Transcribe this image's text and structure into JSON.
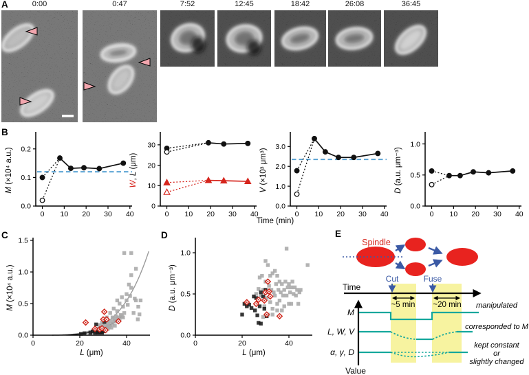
{
  "colors": {
    "red": "#d6251d",
    "ellipse_red": "#e8231f",
    "light_blue": "#5aa2d4",
    "teal": "#14a79c",
    "yellow": "#f7f3a0",
    "blue": "#3b5aa5",
    "gray": "#a8a8a8",
    "black": "#111111",
    "pink": "#f2a6ae"
  },
  "panelA": {
    "label": "A",
    "timestamps": [
      "0:00",
      "0:47",
      "7:52",
      "12:45",
      "18:42",
      "26:08",
      "36:45"
    ]
  },
  "panelB": {
    "label": "B",
    "xlabel": "Time (min)"
  },
  "panelC": {
    "label": "C"
  },
  "panelD": {
    "label": "D"
  },
  "panelE": {
    "label": "E",
    "spindle_label": "Spindle",
    "time_label": "Time",
    "cut_label": "Cut",
    "fuse_label": "Fuse",
    "interval_short": "~5 min",
    "interval_long": "~20 min",
    "value_label": "Value",
    "rows": [
      {
        "label": "M",
        "annotation": [
          "manipulated"
        ]
      },
      {
        "label": "L, W, V",
        "annotation": [
          "corresponded to M"
        ]
      },
      {
        "label": "α, γ, D",
        "annotation": [
          "kept constant",
          "or",
          "slightly changed"
        ]
      }
    ]
  },
  "chart_data": [
    {
      "id": "B1",
      "type": "line",
      "ylabel_parts": [
        {
          "t": "M",
          "i": true
        },
        {
          "t": " (×10⁴ a.u.)"
        }
      ],
      "xlim": [
        -3,
        41
      ],
      "xticks": [
        0,
        10,
        20,
        30,
        40
      ],
      "ylim": [
        0,
        0.25
      ],
      "yticks": [
        0,
        0.1,
        0.2
      ],
      "ytick_labels": [
        "0.0",
        "0.1",
        "0.2"
      ],
      "hline": 0.12,
      "series": [
        {
          "marker": "circle",
          "color": "#111111",
          "open_start": [
            0,
            0.02
          ],
          "points": [
            [
              0,
              0.1
            ],
            [
              8,
              0.168
            ],
            [
              13,
              0.132
            ],
            [
              19,
              0.134
            ],
            [
              26,
              0.131
            ],
            [
              37,
              0.15
            ]
          ]
        }
      ]
    },
    {
      "id": "B2",
      "type": "line",
      "ylabel_parts": [
        {
          "t": "W",
          "i": true,
          "c": "#d6251d"
        },
        {
          "t": ", "
        },
        {
          "t": "L",
          "i": true
        },
        {
          "t": " (μm)"
        }
      ],
      "xlim": [
        -3,
        41
      ],
      "xticks": [
        0,
        10,
        20,
        30,
        40
      ],
      "ylim": [
        0,
        35
      ],
      "yticks": [
        0,
        10,
        20,
        30
      ],
      "ytick_labels": [
        "0",
        "10",
        "20",
        "30"
      ],
      "series": [
        {
          "marker": "circle",
          "color": "#111111",
          "open_start": [
            0,
            26.5
          ],
          "points": [
            [
              0,
              28.3
            ],
            [
              19,
              31.0
            ],
            [
              26,
              30.4
            ],
            [
              37,
              30.7
            ]
          ]
        },
        {
          "marker": "triangle",
          "color": "#d6251d",
          "open_start": [
            0,
            6.8
          ],
          "points": [
            [
              0,
              11.5
            ],
            [
              19,
              12.6
            ],
            [
              26,
              12.4
            ],
            [
              37,
              12.1
            ]
          ]
        }
      ]
    },
    {
      "id": "B3",
      "type": "line",
      "ylabel_parts": [
        {
          "t": "V",
          "i": true
        },
        {
          "t": " (×10³ μm³)"
        }
      ],
      "xlim": [
        -3,
        41
      ],
      "xticks": [
        0,
        10,
        20,
        30,
        40
      ],
      "ylim": [
        0,
        3.6
      ],
      "yticks": [
        0,
        1,
        2,
        3
      ],
      "ytick_labels": [
        "0.0",
        "1.0",
        "2.0",
        "3.0"
      ],
      "hline": 2.35,
      "series": [
        {
          "marker": "circle",
          "color": "#111111",
          "open_start": [
            0,
            0.6
          ],
          "points": [
            [
              0,
              1.78
            ],
            [
              8,
              3.4
            ],
            [
              13,
              2.73
            ],
            [
              19,
              2.45
            ],
            [
              26,
              2.45
            ],
            [
              37,
              2.65
            ]
          ]
        }
      ]
    },
    {
      "id": "B4",
      "type": "line",
      "ylabel_parts": [
        {
          "t": "D",
          "i": true
        },
        {
          "t": " (a.u. μm⁻³)"
        }
      ],
      "xlim": [
        -3,
        41
      ],
      "xticks": [
        0,
        10,
        20,
        30,
        40
      ],
      "ylim": [
        0,
        1.15
      ],
      "yticks": [
        0,
        0.5,
        1
      ],
      "ytick_labels": [
        "0.0",
        "0.5",
        "1.0"
      ],
      "series": [
        {
          "marker": "circle",
          "color": "#111111",
          "open_start": [
            0,
            0.345
          ],
          "points": [
            [
              0,
              0.565
            ],
            [
              8,
              0.49
            ],
            [
              13,
              0.49
            ],
            [
              19,
              0.55
            ],
            [
              26,
              0.535
            ],
            [
              37,
              0.565
            ]
          ]
        }
      ]
    },
    {
      "id": "C",
      "type": "scatter",
      "xlabel_parts": [
        {
          "t": "L",
          "i": true
        },
        {
          "t": " (μm)"
        }
      ],
      "ylabel_parts": [
        {
          "t": "M",
          "i": true
        },
        {
          "t": " (×10⁴ a.u.)"
        }
      ],
      "xlim": [
        0,
        50
      ],
      "xticks": [
        0,
        20,
        40
      ],
      "ylim": [
        0,
        1.5
      ],
      "yticks": [
        0,
        0.5,
        1,
        1.5
      ],
      "ytick_labels": [
        "0.0",
        "0.5",
        "1.0",
        "1.5"
      ],
      "curves": [
        {
          "color": "#9b9b9b",
          "coef": 1.14e-07,
          "exp": 4.17,
          "range": [
            8,
            49.5
          ]
        },
        {
          "color": "#111111",
          "coef": 5.2e-08,
          "exp": 4.28,
          "range": [
            8,
            38
          ]
        }
      ],
      "series": [
        {
          "marker": "square",
          "color": "#a8a8a8",
          "points": [
            [
              25,
              0.05
            ],
            [
              26,
              0.07
            ],
            [
              26.5,
              0.04
            ],
            [
              27,
              0.06
            ],
            [
              27.5,
              0.1
            ],
            [
              28,
              0.08
            ],
            [
              28.5,
              0.05
            ],
            [
              28.5,
              0.16
            ],
            [
              29,
              0.09
            ],
            [
              29.5,
              0.12
            ],
            [
              29.5,
              0.2
            ],
            [
              30,
              0.08
            ],
            [
              30,
              0.14
            ],
            [
              30.5,
              0.1
            ],
            [
              31,
              0.07
            ],
            [
              31,
              0.12
            ],
            [
              31.5,
              0.15
            ],
            [
              31.5,
              0.28
            ],
            [
              32,
              0.1
            ],
            [
              32,
              0.18
            ],
            [
              32.5,
              0.13
            ],
            [
              33,
              0.16
            ],
            [
              33,
              0.22
            ],
            [
              33,
              0.35
            ],
            [
              33.5,
              0.12
            ],
            [
              34,
              0.18
            ],
            [
              34,
              0.28
            ],
            [
              34.5,
              0.22
            ],
            [
              34.5,
              0.42
            ],
            [
              35,
              0.15
            ],
            [
              35,
              0.25
            ],
            [
              35.5,
              0.3
            ],
            [
              36,
              0.22
            ],
            [
              36,
              0.38
            ],
            [
              36,
              0.55
            ],
            [
              36.5,
              0.28
            ],
            [
              37,
              0.25
            ],
            [
              37,
              0.5
            ],
            [
              37.5,
              0.32
            ],
            [
              38,
              0.3
            ],
            [
              38,
              0.6
            ],
            [
              38.5,
              0.28
            ],
            [
              38.5,
              0.45
            ],
            [
              39,
              0.35
            ],
            [
              39,
              1.3
            ],
            [
              40,
              0.55
            ],
            [
              40,
              0.65
            ],
            [
              40.5,
              0.48
            ],
            [
              41,
              0.8
            ],
            [
              41.5,
              0.62
            ],
            [
              42,
              0.75
            ],
            [
              42,
              0.95
            ],
            [
              42,
              1.3
            ],
            [
              43,
              0.35
            ],
            [
              43.5,
              0.58
            ],
            [
              44,
              0.55
            ],
            [
              44,
              1.05
            ],
            [
              44.8,
              0.25
            ],
            [
              45,
              0.45
            ],
            [
              45.5,
              0.33
            ],
            [
              46,
              0.55
            ]
          ]
        },
        {
          "marker": "square",
          "color": "#1a1a1a",
          "points": [
            [
              20.5,
              0.02
            ],
            [
              22,
              0.03
            ],
            [
              24.5,
              0.04
            ],
            [
              25.5,
              0.06
            ],
            [
              26.5,
              0.04
            ],
            [
              27,
              0.17
            ],
            [
              27.5,
              0.05
            ],
            [
              28,
              0.04
            ],
            [
              28.5,
              0.07
            ],
            [
              29,
              0.05
            ],
            [
              29.5,
              0.04
            ],
            [
              30,
              0.06
            ],
            [
              30.5,
              0.21
            ]
          ]
        },
        {
          "marker": "diamond-open",
          "color": "#cf2318",
          "points": [
            [
              22.5,
              0.2
            ],
            [
              26.5,
              0.1
            ],
            [
              28.5,
              0.09
            ],
            [
              29.5,
              0.11
            ],
            [
              30,
              0.25
            ],
            [
              30.5,
              0.37
            ],
            [
              31,
              0.08
            ],
            [
              31.5,
              0.25
            ],
            [
              36.5,
              0.22
            ]
          ]
        }
      ]
    },
    {
      "id": "D",
      "type": "scatter",
      "xlabel_parts": [
        {
          "t": "L",
          "i": true
        },
        {
          "t": " (μm)"
        }
      ],
      "ylabel_parts": [
        {
          "t": "D",
          "i": true
        },
        {
          "t": " (a.u. μm⁻³)"
        }
      ],
      "xlim": [
        0,
        50
      ],
      "xticks": [
        0,
        20,
        40
      ],
      "ylim": [
        0,
        1.15
      ],
      "yticks": [
        0,
        0.5,
        1
      ],
      "ytick_labels": [
        "0.0",
        "0.5",
        "1.0"
      ],
      "series": [
        {
          "marker": "square",
          "color": "#a8a8a8",
          "points": [
            [
              26,
              0.5
            ],
            [
              27,
              0.56
            ],
            [
              27.5,
              0.7
            ],
            [
              28,
              0.48
            ],
            [
              28.5,
              0.72
            ],
            [
              29,
              0.55
            ],
            [
              29,
              0.22
            ],
            [
              29.5,
              0.35
            ],
            [
              30,
              0.9
            ],
            [
              30,
              0.65
            ],
            [
              30.5,
              0.45
            ],
            [
              31,
              0.85
            ],
            [
              31,
              0.52
            ],
            [
              31,
              0.25
            ],
            [
              31.5,
              0.6
            ],
            [
              32,
              0.72
            ],
            [
              32,
              0.4
            ],
            [
              32.5,
              0.55
            ],
            [
              33,
              0.75
            ],
            [
              33,
              0.32
            ],
            [
              33,
              0.25
            ],
            [
              33.5,
              0.52
            ],
            [
              34,
              0.78
            ],
            [
              34,
              0.48
            ],
            [
              34.5,
              0.62
            ],
            [
              35,
              0.38
            ],
            [
              35,
              0.72
            ],
            [
              35,
              0.3
            ],
            [
              35.5,
              0.55
            ],
            [
              36,
              0.42
            ],
            [
              36,
              0.65
            ],
            [
              36.5,
              0.52
            ],
            [
              37,
              0.3
            ],
            [
              37,
              0.62
            ],
            [
              37.5,
              0.48
            ],
            [
              38,
              0.55
            ],
            [
              38,
              0.35
            ],
            [
              38.5,
              0.65
            ],
            [
              39,
              1.05
            ],
            [
              39,
              0.48
            ],
            [
              39.5,
              0.58
            ],
            [
              40,
              0.38
            ],
            [
              40,
              0.62
            ],
            [
              40.5,
              0.52
            ],
            [
              41,
              0.58
            ],
            [
              41,
              0.38
            ],
            [
              41.5,
              0.65
            ],
            [
              42,
              0.5
            ],
            [
              42.5,
              0.58
            ],
            [
              43,
              0.48
            ],
            [
              43.5,
              0.55
            ],
            [
              44,
              0.38
            ],
            [
              44.5,
              0.52
            ],
            [
              45,
              0.55
            ],
            [
              48,
              0.85
            ]
          ]
        },
        {
          "marker": "square",
          "color": "#1a1a1a",
          "points": [
            [
              20,
              0.25
            ],
            [
              21,
              0.38
            ],
            [
              22,
              0.35
            ],
            [
              23,
              0.37
            ],
            [
              24,
              0.33
            ],
            [
              25,
              0.47
            ],
            [
              25.5,
              0.3
            ],
            [
              26,
              0.45
            ],
            [
              26.5,
              0.24
            ],
            [
              27,
              0.15
            ],
            [
              27.5,
              0.35
            ],
            [
              28,
              0.52
            ],
            [
              28,
              0.14
            ],
            [
              29,
              0.47
            ],
            [
              29.5,
              0.32
            ],
            [
              30,
              0.55
            ],
            [
              30.5,
              0.23
            ]
          ]
        },
        {
          "marker": "diamond-open",
          "color": "#cf2318",
          "points": [
            [
              22,
              0.4
            ],
            [
              26,
              0.38
            ],
            [
              27,
              0.43
            ],
            [
              29.5,
              0.42
            ],
            [
              30,
              0.52
            ],
            [
              30.5,
              0.25
            ],
            [
              31,
              0.65
            ],
            [
              31.5,
              0.53
            ],
            [
              32,
              0.47
            ],
            [
              36,
              0.23
            ]
          ]
        }
      ]
    }
  ]
}
